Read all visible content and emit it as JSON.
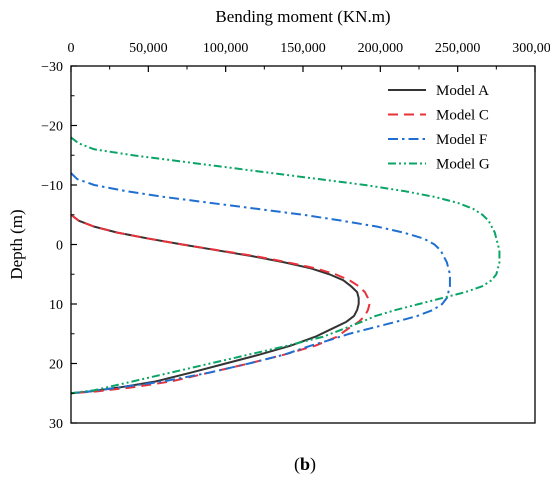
{
  "chart_data": {
    "type": "line",
    "xlabel": "Bending moment (KN.m)",
    "ylabel": "Depth (m)",
    "xlim": [
      0,
      300000
    ],
    "ylim": [
      -30,
      30
    ],
    "x_axis_position": "top",
    "y_axis_inverted": true,
    "x_ticks": [
      0,
      50000,
      100000,
      150000,
      200000,
      250000,
      300000
    ],
    "x_tick_labels": [
      "0",
      "50,000",
      "100,000",
      "150,000",
      "200,000",
      "250,000",
      "300,000"
    ],
    "y_ticks": [
      -30,
      -20,
      -10,
      0,
      10,
      20,
      30
    ],
    "y_tick_labels": [
      "−30",
      "−20",
      "−10",
      "0",
      "10",
      "20",
      "30"
    ],
    "grid": false,
    "legend_position": "top-right",
    "caption": "(b)",
    "caption_bold": "b",
    "series": [
      {
        "name": "Model A",
        "color": "#333333",
        "dash": "solid",
        "points": [
          [
            0,
            -5
          ],
          [
            5000,
            -4
          ],
          [
            15000,
            -3
          ],
          [
            30000,
            -2
          ],
          [
            50000,
            -1
          ],
          [
            72000,
            0
          ],
          [
            95000,
            1
          ],
          [
            118000,
            2
          ],
          [
            138000,
            3
          ],
          [
            155000,
            4
          ],
          [
            167000,
            5
          ],
          [
            176000,
            6
          ],
          [
            181000,
            7
          ],
          [
            185000,
            8
          ],
          [
            186000,
            9
          ],
          [
            186000,
            10
          ],
          [
            185000,
            11
          ],
          [
            183000,
            12
          ],
          [
            178000,
            13
          ],
          [
            170000,
            14
          ],
          [
            158000,
            15.5
          ],
          [
            142000,
            17
          ],
          [
            122000,
            18.5
          ],
          [
            100000,
            20
          ],
          [
            78000,
            21.5
          ],
          [
            55000,
            23
          ],
          [
            32000,
            24
          ],
          [
            12000,
            24.7
          ],
          [
            0,
            25
          ]
        ]
      },
      {
        "name": "Model C",
        "color": "#e8313a",
        "dash": "dashed",
        "points": [
          [
            0,
            -5
          ],
          [
            5000,
            -4
          ],
          [
            15000,
            -3
          ],
          [
            30000,
            -2
          ],
          [
            50000,
            -1
          ],
          [
            72000,
            0
          ],
          [
            96000,
            1
          ],
          [
            120000,
            2
          ],
          [
            140000,
            3
          ],
          [
            158000,
            4
          ],
          [
            171000,
            5
          ],
          [
            180000,
            6
          ],
          [
            186000,
            7
          ],
          [
            190000,
            8
          ],
          [
            192000,
            9
          ],
          [
            193000,
            10
          ],
          [
            192000,
            11
          ],
          [
            190000,
            12
          ],
          [
            186000,
            13
          ],
          [
            180000,
            14
          ],
          [
            172000,
            15.5
          ],
          [
            158000,
            17
          ],
          [
            138000,
            18.5
          ],
          [
            115000,
            20
          ],
          [
            90000,
            21.5
          ],
          [
            65000,
            23
          ],
          [
            40000,
            24
          ],
          [
            16000,
            24.7
          ],
          [
            0,
            25
          ]
        ]
      },
      {
        "name": "Model F",
        "color": "#1f6fd0",
        "dash": "dashdot",
        "points": [
          [
            0,
            -12
          ],
          [
            4000,
            -11
          ],
          [
            15000,
            -10
          ],
          [
            35000,
            -9
          ],
          [
            60000,
            -8
          ],
          [
            90000,
            -7
          ],
          [
            120000,
            -6
          ],
          [
            150000,
            -5
          ],
          [
            175000,
            -4
          ],
          [
            198000,
            -3
          ],
          [
            215000,
            -2
          ],
          [
            228000,
            -1
          ],
          [
            235000,
            0
          ],
          [
            239000,
            1
          ],
          [
            241000,
            2
          ],
          [
            243000,
            3
          ],
          [
            244000,
            4
          ],
          [
            245000,
            5
          ],
          [
            245000,
            6
          ],
          [
            245000,
            7
          ],
          [
            244000,
            8
          ],
          [
            243000,
            9
          ],
          [
            240000,
            10
          ],
          [
            234000,
            11
          ],
          [
            224000,
            12
          ],
          [
            210000,
            13
          ],
          [
            195000,
            14
          ],
          [
            180000,
            15
          ],
          [
            168000,
            16
          ],
          [
            155000,
            17
          ],
          [
            138000,
            18.5
          ],
          [
            115000,
            20
          ],
          [
            90000,
            21.5
          ],
          [
            60000,
            23
          ],
          [
            32000,
            24
          ],
          [
            12000,
            24.7
          ],
          [
            0,
            25
          ]
        ]
      },
      {
        "name": "Model G",
        "color": "#0aa566",
        "dash": "dashdotdot",
        "points": [
          [
            0,
            -18
          ],
          [
            5000,
            -17
          ],
          [
            15000,
            -16
          ],
          [
            40000,
            -15
          ],
          [
            70000,
            -14
          ],
          [
            100000,
            -13
          ],
          [
            130000,
            -12
          ],
          [
            160000,
            -11
          ],
          [
            190000,
            -10
          ],
          [
            215000,
            -9
          ],
          [
            235000,
            -8
          ],
          [
            250000,
            -7
          ],
          [
            260000,
            -6
          ],
          [
            266000,
            -5
          ],
          [
            270000,
            -4
          ],
          [
            272000,
            -3
          ],
          [
            274000,
            -2
          ],
          [
            275000,
            -1
          ],
          [
            276000,
            0
          ],
          [
            277000,
            1
          ],
          [
            277000,
            2
          ],
          [
            277000,
            3
          ],
          [
            276000,
            4
          ],
          [
            275000,
            5
          ],
          [
            272000,
            6
          ],
          [
            266000,
            7
          ],
          [
            255000,
            8
          ],
          [
            240000,
            9
          ],
          [
            225000,
            10
          ],
          [
            210000,
            11
          ],
          [
            197000,
            12
          ],
          [
            188000,
            13
          ],
          [
            178000,
            14
          ],
          [
            163000,
            15.5
          ],
          [
            140000,
            17
          ],
          [
            115000,
            18.5
          ],
          [
            90000,
            20
          ],
          [
            65000,
            21.5
          ],
          [
            40000,
            23
          ],
          [
            15000,
            24.5
          ],
          [
            0,
            25
          ]
        ]
      }
    ]
  }
}
